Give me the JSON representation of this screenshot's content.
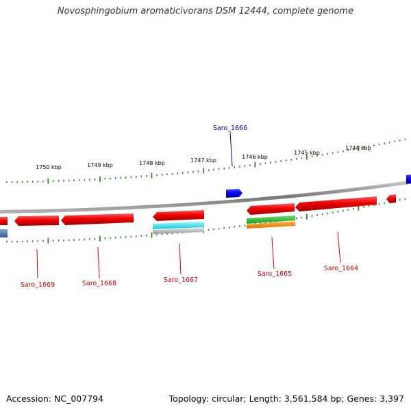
{
  "title": "Novosphingobium aromaticivorans DSM 12444, complete genome",
  "footer": {
    "accession": "Accession: NC_007794",
    "stats": "Topology: circular; Length: 3,561,584 bp; Genes: 3,397"
  },
  "scale_ticks": [
    "1750 kbp",
    "1749 kbp",
    "1748 kbp",
    "1747 kbp",
    "1746 kbp",
    "1745 kbp",
    "1744 kbp"
  ],
  "genes": [
    {
      "id": "Saro_1669",
      "label": "Saro_1669",
      "strand": "reverse"
    },
    {
      "id": "Saro_1668",
      "label": "Saro_1668",
      "strand": "reverse"
    },
    {
      "id": "Saro_1667",
      "label": "Saro_1667",
      "strand": "reverse"
    },
    {
      "id": "Saro_1666",
      "label": "Saro_1666",
      "strand": "forward"
    },
    {
      "id": "Saro_1665",
      "label": "Saro_1665",
      "strand": "reverse"
    },
    {
      "id": "Saro_1664",
      "label": "Saro_1664",
      "strand": "reverse"
    }
  ],
  "colors": {
    "forward_cds": "#0000ee",
    "reverse_cds": "#ee0000",
    "forward_label": "#0000aa",
    "reverse_label": "#cc0000",
    "tick": "#2e8b22",
    "backbone": "#888888",
    "feature_cyan": "#22e0e8",
    "feature_green": "#33bb33",
    "feature_orange": "#ff8800",
    "feature_steel": "#4a7fb5"
  }
}
